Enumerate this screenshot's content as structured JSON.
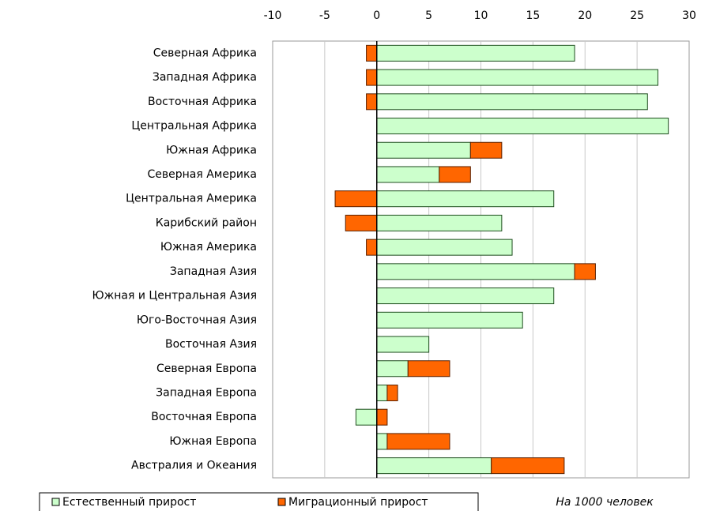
{
  "chart_data": {
    "type": "bar",
    "orientation": "horizontal",
    "stacked": true,
    "categories": [
      "Северная Африка",
      "Западная Африка",
      "Восточная Африка",
      "Центральная Африка",
      "Южная Африка",
      "Северная Америка",
      "Центральная Америка",
      "Карибский район",
      "Южная Америка",
      "Западная Азия",
      "Южная и Центральная Азия",
      "Юго-Восточная Азия",
      "Восточная Азия",
      "Северная Европа",
      "Западная Европа",
      "Восточная Европа",
      "Южная Европа",
      "Австралия и Океания"
    ],
    "series": [
      {
        "name": "Естественный прирост",
        "color": "#ccffcc",
        "values": [
          19,
          27,
          26,
          28,
          9,
          6,
          17,
          12,
          13,
          19,
          17,
          14,
          5,
          3,
          1,
          -2,
          1,
          11
        ]
      },
      {
        "name": "Миграционный прирост",
        "color": "#ff6600",
        "values": [
          -1,
          -1,
          -1,
          0,
          3,
          3,
          -4,
          -3,
          -1,
          2,
          0,
          0,
          0,
          4,
          1,
          1,
          6,
          7
        ]
      }
    ],
    "xlim": [
      -10,
      30
    ],
    "xticks": [
      -10,
      -5,
      0,
      5,
      10,
      15,
      20,
      25,
      30
    ],
    "grid": true,
    "annotation": "На 1000 человек",
    "legend": "bottom"
  }
}
